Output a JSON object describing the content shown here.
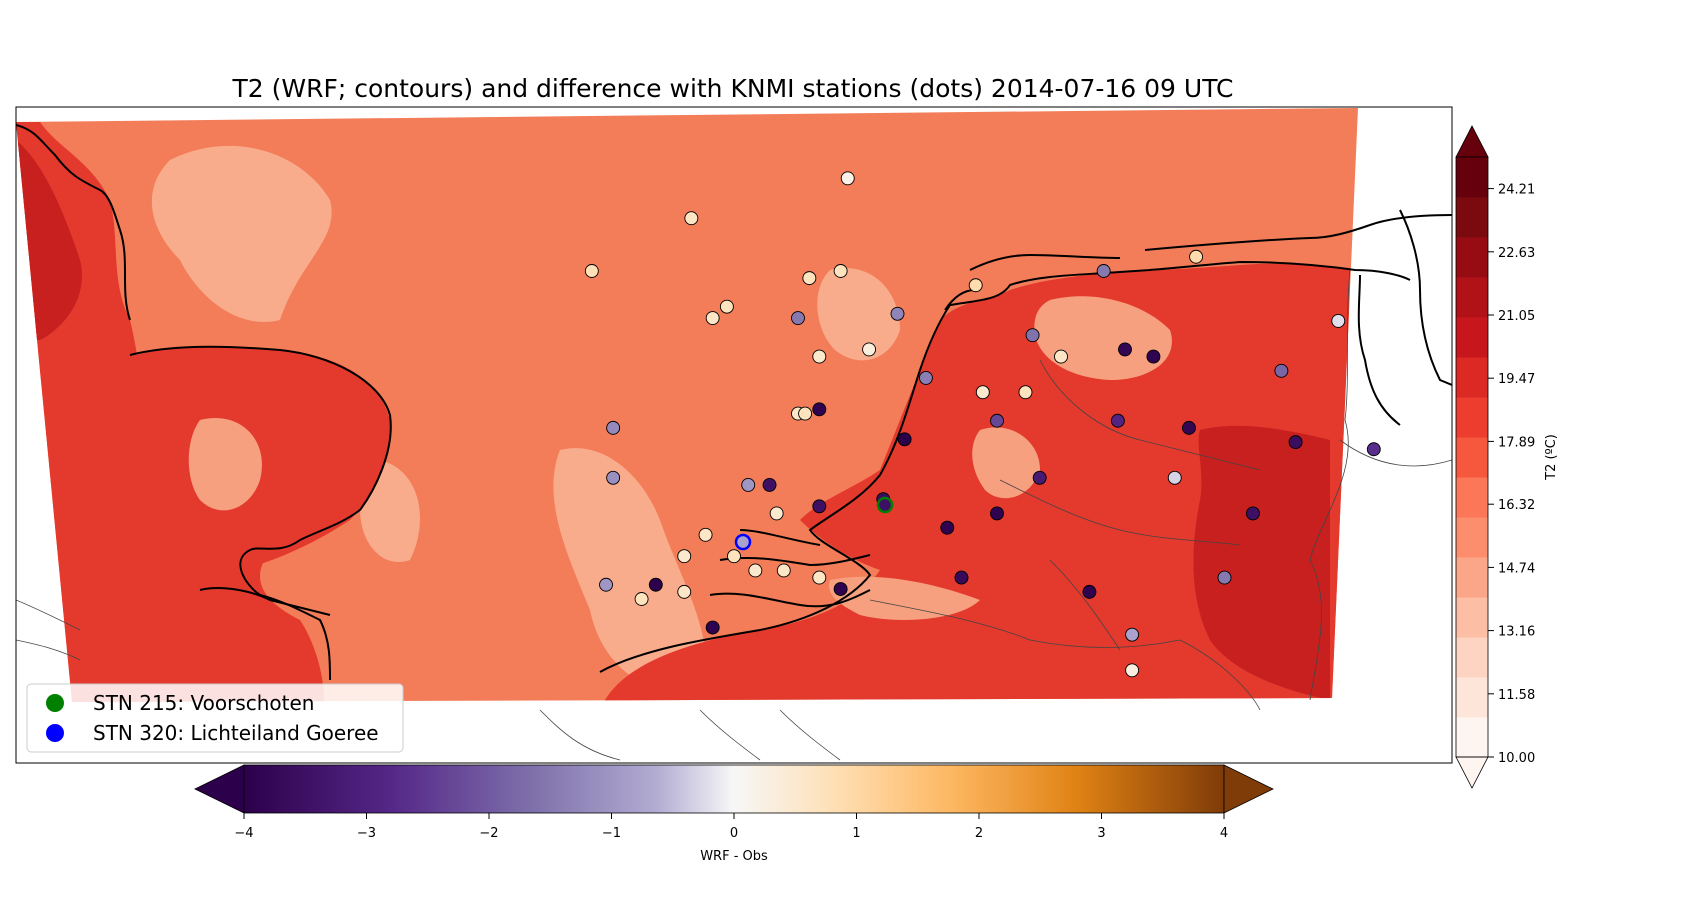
{
  "title": "T2 (WRF; contours) and difference with KNMI stations (dots) 2014-07-16 09 UTC",
  "colors": {
    "land_fill": "#e4392d",
    "land_dark": "#c7201f",
    "land_light": "#f6a07f",
    "sea_fill": "#f37d59",
    "sea_light": "#f8ac8c",
    "coast": "#000000",
    "border": "#333333"
  },
  "legend": {
    "entries": [
      {
        "label": "STN 215: Voorschoten",
        "color": "#008000"
      },
      {
        "label": "STN 320: Lichteiland Goeree",
        "color": "#0000ff"
      }
    ]
  },
  "colorbar_t2": {
    "label": "T2 (ºC)",
    "ticks": [
      "24.21",
      "22.63",
      "21.05",
      "19.47",
      "17.89",
      "16.32",
      "14.74",
      "13.16",
      "11.58",
      "10.00"
    ],
    "min": 10.0,
    "max": 25.0,
    "colors": [
      "#fff5f0",
      "#fee5d9",
      "#fdd4c2",
      "#fcbea5",
      "#fca689",
      "#fc8e6e",
      "#fb7757",
      "#f6583e",
      "#ed3d2f",
      "#dc2924",
      "#c7171c",
      "#b11218",
      "#970c13",
      "#7b0a0f",
      "#67000d"
    ]
  },
  "colorbar_diff": {
    "label": "WRF - Obs",
    "ticks": [
      "−4",
      "−3",
      "−2",
      "−1",
      "0",
      "1",
      "2",
      "3",
      "4"
    ],
    "min": -4,
    "max": 4
  },
  "chart_data": {
    "type": "scatter",
    "title": "T2 (WRF; contours) and difference with KNMI stations (dots) 2014-07-16 09 UTC",
    "xlabel": "",
    "ylabel": "",
    "note_value": "station dot color encodes WRF - Obs (°C)",
    "series": [
      {
        "name": "STN 215: Voorschoten",
        "values": [
          -3.5
        ]
      },
      {
        "name": "STN 320: Lichteiland Goeree",
        "values": [
          -0.8
        ]
      }
    ],
    "stations": [
      {
        "lon": 5.05,
        "lat": 55.7,
        "diff": 0.2
      },
      {
        "lon": 3.95,
        "lat": 55.42,
        "diff": 0.6
      },
      {
        "lon": 3.25,
        "lat": 55.05,
        "diff": 0.8
      },
      {
        "lon": 4.78,
        "lat": 55.0,
        "diff": 0.7
      },
      {
        "lon": 5.0,
        "lat": 55.05,
        "diff": 0.7
      },
      {
        "lon": 4.2,
        "lat": 54.8,
        "diff": 0.7
      },
      {
        "lon": 4.1,
        "lat": 54.72,
        "diff": 0.6
      },
      {
        "lon": 4.7,
        "lat": 54.72,
        "diff": -1.5
      },
      {
        "lon": 4.85,
        "lat": 54.45,
        "diff": 0.5
      },
      {
        "lon": 5.2,
        "lat": 54.5,
        "diff": 0.3
      },
      {
        "lon": 5.4,
        "lat": 54.75,
        "diff": -1.3
      },
      {
        "lon": 5.95,
        "lat": 54.95,
        "diff": 0.9
      },
      {
        "lon": 6.85,
        "lat": 55.05,
        "diff": -1.5
      },
      {
        "lon": 7.5,
        "lat": 55.15,
        "diff": 0.9
      },
      {
        "lon": 6.35,
        "lat": 54.6,
        "diff": -1.6
      },
      {
        "lon": 7.0,
        "lat": 54.5,
        "diff": -3.8
      },
      {
        "lon": 6.55,
        "lat": 54.45,
        "diff": 0.6
      },
      {
        "lon": 8.5,
        "lat": 54.7,
        "diff": -0.2
      },
      {
        "lon": 7.2,
        "lat": 54.45,
        "diff": -3.9
      },
      {
        "lon": 8.1,
        "lat": 54.35,
        "diff": -1.8
      },
      {
        "lon": 5.6,
        "lat": 54.3,
        "diff": -1.4
      },
      {
        "lon": 6.0,
        "lat": 54.2,
        "diff": 0.5
      },
      {
        "lon": 6.3,
        "lat": 54.2,
        "diff": 0.7
      },
      {
        "lon": 6.95,
        "lat": 54.0,
        "diff": -2.9
      },
      {
        "lon": 4.7,
        "lat": 54.05,
        "diff": 0.6
      },
      {
        "lon": 4.75,
        "lat": 54.05,
        "diff": 0.7
      },
      {
        "lon": 4.85,
        "lat": 54.08,
        "diff": -3.9
      },
      {
        "lon": 5.45,
        "lat": 53.87,
        "diff": -4.0
      },
      {
        "lon": 6.1,
        "lat": 54.0,
        "diff": -2.3
      },
      {
        "lon": 7.45,
        "lat": 53.95,
        "diff": -3.8
      },
      {
        "lon": 8.2,
        "lat": 53.85,
        "diff": -3.6
      },
      {
        "lon": 8.75,
        "lat": 53.8,
        "diff": -2.7
      },
      {
        "lon": 3.4,
        "lat": 53.95,
        "diff": -1.2
      },
      {
        "lon": 3.4,
        "lat": 53.6,
        "diff": -1.1
      },
      {
        "lon": 4.35,
        "lat": 53.55,
        "diff": -1.0
      },
      {
        "lon": 4.5,
        "lat": 53.55,
        "diff": -3.5
      },
      {
        "lon": 6.4,
        "lat": 53.6,
        "diff": -3.2
      },
      {
        "lon": 5.3,
        "lat": 53.45,
        "diff": -3.6
      },
      {
        "lon": 4.85,
        "lat": 53.4,
        "diff": -3.5
      },
      {
        "lon": 4.55,
        "lat": 53.35,
        "diff": 0.5
      },
      {
        "lon": 6.1,
        "lat": 53.35,
        "diff": -3.9
      },
      {
        "lon": 7.35,
        "lat": 53.6,
        "diff": -0.3
      },
      {
        "lon": 7.9,
        "lat": 53.35,
        "diff": -3.5
      },
      {
        "lon": 5.75,
        "lat": 53.25,
        "diff": -3.9
      },
      {
        "lon": 4.05,
        "lat": 53.2,
        "diff": 0.6
      },
      {
        "lon": 4.25,
        "lat": 53.05,
        "diff": 0.7
      },
      {
        "lon": 3.9,
        "lat": 53.05,
        "diff": 0.5
      },
      {
        "lon": 4.4,
        "lat": 52.95,
        "diff": 0.5
      },
      {
        "lon": 4.6,
        "lat": 52.95,
        "diff": 0.6
      },
      {
        "lon": 4.85,
        "lat": 52.9,
        "diff": 0.6
      },
      {
        "lon": 5.0,
        "lat": 52.82,
        "diff": -3.9
      },
      {
        "lon": 3.35,
        "lat": 52.85,
        "diff": -1.0
      },
      {
        "lon": 3.7,
        "lat": 52.85,
        "diff": -4.0
      },
      {
        "lon": 3.9,
        "lat": 52.8,
        "diff": 0.6
      },
      {
        "lon": 3.6,
        "lat": 52.75,
        "diff": 0.7
      },
      {
        "lon": 5.85,
        "lat": 52.9,
        "diff": -3.7
      },
      {
        "lon": 6.75,
        "lat": 52.8,
        "diff": -3.9
      },
      {
        "lon": 7.7,
        "lat": 52.9,
        "diff": -1.5
      },
      {
        "lon": 4.1,
        "lat": 52.55,
        "diff": -3.9
      },
      {
        "lon": 7.05,
        "lat": 52.5,
        "diff": -0.8
      },
      {
        "lon": 7.05,
        "lat": 52.25,
        "diff": 0.3
      }
    ]
  }
}
